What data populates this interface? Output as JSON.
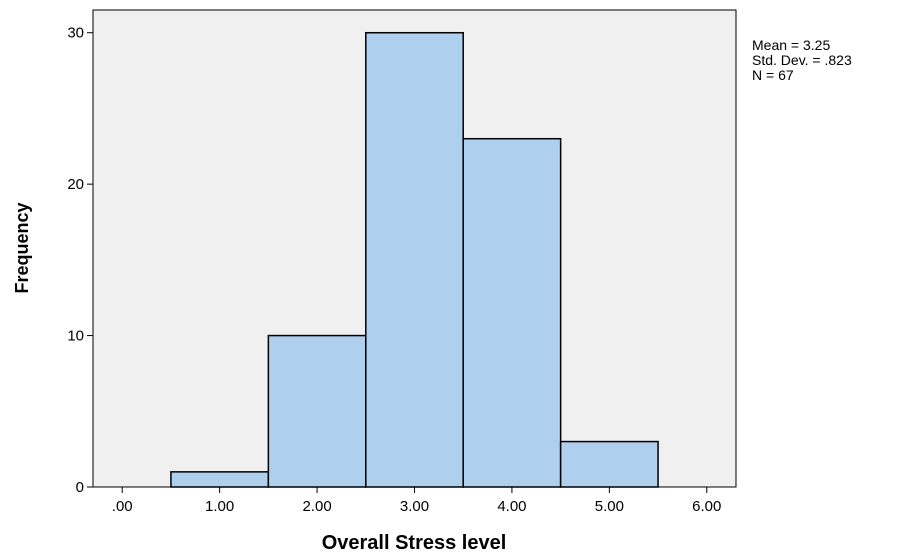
{
  "chart_data": {
    "type": "bar",
    "title": "",
    "xlabel": "Overall Stress level",
    "ylabel": "Frequency",
    "bins": [
      {
        "from": 0.5,
        "to": 1.5,
        "count": 1
      },
      {
        "from": 1.5,
        "to": 2.5,
        "count": 10
      },
      {
        "from": 2.5,
        "to": 3.5,
        "count": 30
      },
      {
        "from": 3.5,
        "to": 4.5,
        "count": 23
      },
      {
        "from": 4.5,
        "to": 5.5,
        "count": 3
      }
    ],
    "xlim": [
      -0.3,
      6.3
    ],
    "ylim": [
      0,
      31.5
    ],
    "x_ticks": [
      {
        "value": 0,
        "label": ".00"
      },
      {
        "value": 1,
        "label": "1.00"
      },
      {
        "value": 2,
        "label": "2.00"
      },
      {
        "value": 3,
        "label": "3.00"
      },
      {
        "value": 4,
        "label": "4.00"
      },
      {
        "value": 5,
        "label": "5.00"
      },
      {
        "value": 6,
        "label": "6.00"
      }
    ],
    "y_ticks": [
      {
        "value": 0,
        "label": "0"
      },
      {
        "value": 10,
        "label": "10"
      },
      {
        "value": 20,
        "label": "20"
      },
      {
        "value": 30,
        "label": "30"
      }
    ],
    "stats": {
      "mean_label": "Mean = 3.25",
      "sd_label": "Std. Dev. = .823",
      "n_label": "N = 67"
    },
    "grid": false,
    "colors": {
      "bar_fill": "#aecfed",
      "bar_stroke": "#000000",
      "plot_background": "#f0f0f0"
    }
  }
}
